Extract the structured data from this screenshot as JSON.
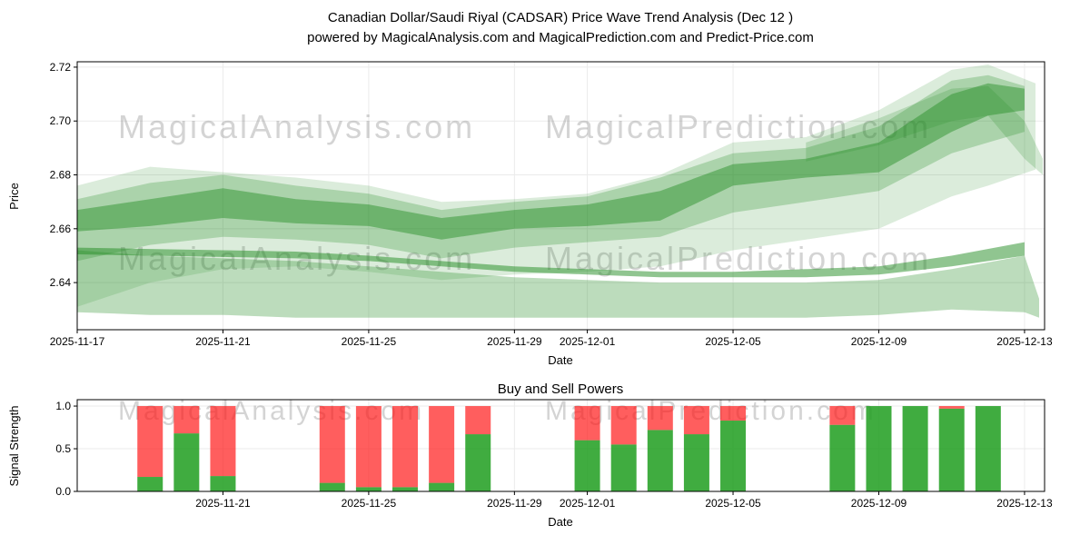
{
  "title": {
    "line1": "Canadian Dollar/Saudi Riyal (CADSAR) Price Wave Trend Analysis (Dec 12 )",
    "line2": "powered by MagicalAnalysis.com and MagicalPrediction.com and Predict-Price.com"
  },
  "watermark": {
    "texts": [
      "MagicalAnalysis.com",
      "MagicalPrediction.com"
    ],
    "color": "#d4d4d4"
  },
  "chart_data": [
    {
      "type": "area",
      "name": "price-wave-trend",
      "title": "",
      "xlabel": "Date",
      "ylabel": "Price",
      "grid": true,
      "band_color": "#228B22",
      "ylim": [
        2.6225,
        2.722
      ],
      "y_ticks": [
        {
          "v": 2.64,
          "label": "2.64"
        },
        {
          "v": 2.66,
          "label": "2.66"
        },
        {
          "v": 2.68,
          "label": "2.68"
        },
        {
          "v": 2.7,
          "label": "2.70"
        },
        {
          "v": 2.72,
          "label": "2.72"
        }
      ],
      "x_ticks": [
        {
          "day": 0,
          "label": "2025-11-17"
        },
        {
          "day": 4,
          "label": "2025-11-21"
        },
        {
          "day": 8,
          "label": "2025-11-25"
        },
        {
          "day": 12,
          "label": "2025-11-29"
        },
        {
          "day": 14,
          "label": "2025-12-01"
        },
        {
          "day": 18,
          "label": "2025-12-05"
        },
        {
          "day": 22,
          "label": "2025-12-09"
        },
        {
          "day": 26,
          "label": "2025-12-13"
        }
      ],
      "bands": [
        {
          "name": "outer-light-band",
          "alpha": 0.16,
          "x": [
            0,
            2,
            4,
            6,
            8,
            10,
            12,
            14,
            16,
            18,
            20,
            22,
            24,
            25,
            26.3
          ],
          "upper": [
            2.676,
            2.683,
            2.681,
            2.679,
            2.676,
            2.67,
            2.671,
            2.673,
            2.68,
            2.692,
            2.694,
            2.704,
            2.719,
            2.721,
            2.714
          ],
          "lower": [
            2.631,
            2.64,
            2.645,
            2.646,
            2.644,
            2.641,
            2.643,
            2.644,
            2.646,
            2.652,
            2.656,
            2.66,
            2.672,
            2.676,
            2.682
          ]
        },
        {
          "name": "mid-band",
          "alpha": 0.26,
          "x": [
            0,
            2,
            4,
            6,
            8,
            10,
            12,
            14,
            16,
            18,
            20,
            22,
            24,
            25,
            26
          ],
          "upper": [
            2.671,
            2.677,
            2.68,
            2.676,
            2.673,
            2.667,
            2.67,
            2.672,
            2.679,
            2.688,
            2.69,
            2.698,
            2.715,
            2.717,
            2.713
          ],
          "lower": [
            2.648,
            2.654,
            2.657,
            2.656,
            2.654,
            2.649,
            2.653,
            2.655,
            2.657,
            2.666,
            2.67,
            2.674,
            2.688,
            2.692,
            2.696
          ]
        },
        {
          "name": "core-dark-band",
          "alpha": 0.45,
          "x": [
            0,
            2,
            4,
            6,
            8,
            10,
            12,
            14,
            16,
            18,
            20,
            22,
            24,
            25,
            26
          ],
          "upper": [
            2.667,
            2.671,
            2.675,
            2.671,
            2.669,
            2.664,
            2.667,
            2.669,
            2.674,
            2.684,
            2.686,
            2.692,
            2.71,
            2.714,
            2.712
          ],
          "lower": [
            2.659,
            2.661,
            2.664,
            2.662,
            2.661,
            2.656,
            2.66,
            2.661,
            2.663,
            2.676,
            2.679,
            2.681,
            2.696,
            2.702,
            2.704
          ]
        },
        {
          "name": "lower-wide-band",
          "alpha": 0.3,
          "x": [
            0,
            2,
            4,
            6,
            8,
            10,
            12,
            14,
            16,
            18,
            20,
            22,
            24,
            26,
            26.4
          ],
          "upper": [
            2.652,
            2.65,
            2.649,
            2.648,
            2.646,
            2.644,
            2.642,
            2.641,
            2.64,
            2.64,
            2.64,
            2.641,
            2.645,
            2.65,
            2.634
          ],
          "lower": [
            2.629,
            2.628,
            2.628,
            2.627,
            2.627,
            2.627,
            2.627,
            2.627,
            2.627,
            2.627,
            2.627,
            2.628,
            2.63,
            2.629,
            2.627
          ]
        },
        {
          "name": "mid-line-band",
          "alpha": 0.5,
          "x": [
            0,
            2,
            4,
            6,
            8,
            10,
            12,
            14,
            16,
            18,
            20,
            22,
            24,
            26
          ],
          "upper": [
            2.653,
            2.6525,
            2.652,
            2.6515,
            2.65,
            2.648,
            2.646,
            2.645,
            2.644,
            2.644,
            2.645,
            2.646,
            2.65,
            2.655
          ],
          "lower": [
            2.6505,
            2.65,
            2.6495,
            2.649,
            2.648,
            2.646,
            2.644,
            2.643,
            2.642,
            2.642,
            2.642,
            2.643,
            2.646,
            2.65
          ]
        },
        {
          "name": "right-upper-band",
          "alpha": 0.2,
          "x": [
            20,
            22,
            24,
            25,
            26,
            26.5
          ],
          "upper": [
            2.692,
            2.701,
            2.712,
            2.713,
            2.7,
            2.686
          ],
          "lower": [
            2.685,
            2.691,
            2.7,
            2.702,
            2.686,
            2.68
          ]
        }
      ]
    },
    {
      "type": "bar",
      "name": "buy-and-sell-powers",
      "title": "Buy and Sell Powers",
      "xlabel": "Date",
      "ylabel": "Signal Strength",
      "grid": true,
      "ylim": [
        0,
        1.075
      ],
      "stack_total": 1.0,
      "series": [
        {
          "name": "Buy",
          "color": "#1f9d1f",
          "alpha": 0.85
        },
        {
          "name": "Sell",
          "color": "#ff1a1a",
          "alpha": 0.7
        }
      ],
      "y_ticks": [
        {
          "v": 0.0,
          "label": "0.0"
        },
        {
          "v": 0.5,
          "label": "0.5"
        },
        {
          "v": 1.0,
          "label": "1.0"
        }
      ],
      "x_ticks": [
        {
          "day": 4,
          "label": "2025-11-21"
        },
        {
          "day": 8,
          "label": "2025-11-25"
        },
        {
          "day": 12,
          "label": "2025-11-29"
        },
        {
          "day": 14,
          "label": "2025-12-01"
        },
        {
          "day": 18,
          "label": "2025-12-05"
        },
        {
          "day": 22,
          "label": "2025-12-09"
        },
        {
          "day": 26,
          "label": "2025-12-13"
        }
      ],
      "bars": [
        {
          "date": "2025-11-19",
          "day": 2,
          "buy": 0.17,
          "sell": 0.83
        },
        {
          "date": "2025-11-20",
          "day": 3,
          "buy": 0.68,
          "sell": 0.32
        },
        {
          "date": "2025-11-21",
          "day": 4,
          "buy": 0.18,
          "sell": 0.82
        },
        {
          "date": "2025-11-24",
          "day": 7,
          "buy": 0.1,
          "sell": 0.9
        },
        {
          "date": "2025-11-25",
          "day": 8,
          "buy": 0.05,
          "sell": 0.95
        },
        {
          "date": "2025-11-26",
          "day": 9,
          "buy": 0.05,
          "sell": 0.95
        },
        {
          "date": "2025-11-27",
          "day": 10,
          "buy": 0.1,
          "sell": 0.9
        },
        {
          "date": "2025-11-28",
          "day": 11,
          "buy": 0.67,
          "sell": 0.33
        },
        {
          "date": "2025-12-01",
          "day": 14,
          "buy": 0.6,
          "sell": 0.4
        },
        {
          "date": "2025-12-02",
          "day": 15,
          "buy": 0.55,
          "sell": 0.45
        },
        {
          "date": "2025-12-03",
          "day": 16,
          "buy": 0.72,
          "sell": 0.28
        },
        {
          "date": "2025-12-04",
          "day": 17,
          "buy": 0.67,
          "sell": 0.33
        },
        {
          "date": "2025-12-05",
          "day": 18,
          "buy": 0.83,
          "sell": 0.17
        },
        {
          "date": "2025-12-08",
          "day": 21,
          "buy": 0.78,
          "sell": 0.22
        },
        {
          "date": "2025-12-09",
          "day": 22,
          "buy": 1.0,
          "sell": 0.0
        },
        {
          "date": "2025-12-10",
          "day": 23,
          "buy": 1.0,
          "sell": 0.0
        },
        {
          "date": "2025-12-11",
          "day": 24,
          "buy": 0.97,
          "sell": 0.03
        },
        {
          "date": "2025-12-12",
          "day": 25,
          "buy": 1.0,
          "sell": 0.0
        }
      ]
    }
  ]
}
